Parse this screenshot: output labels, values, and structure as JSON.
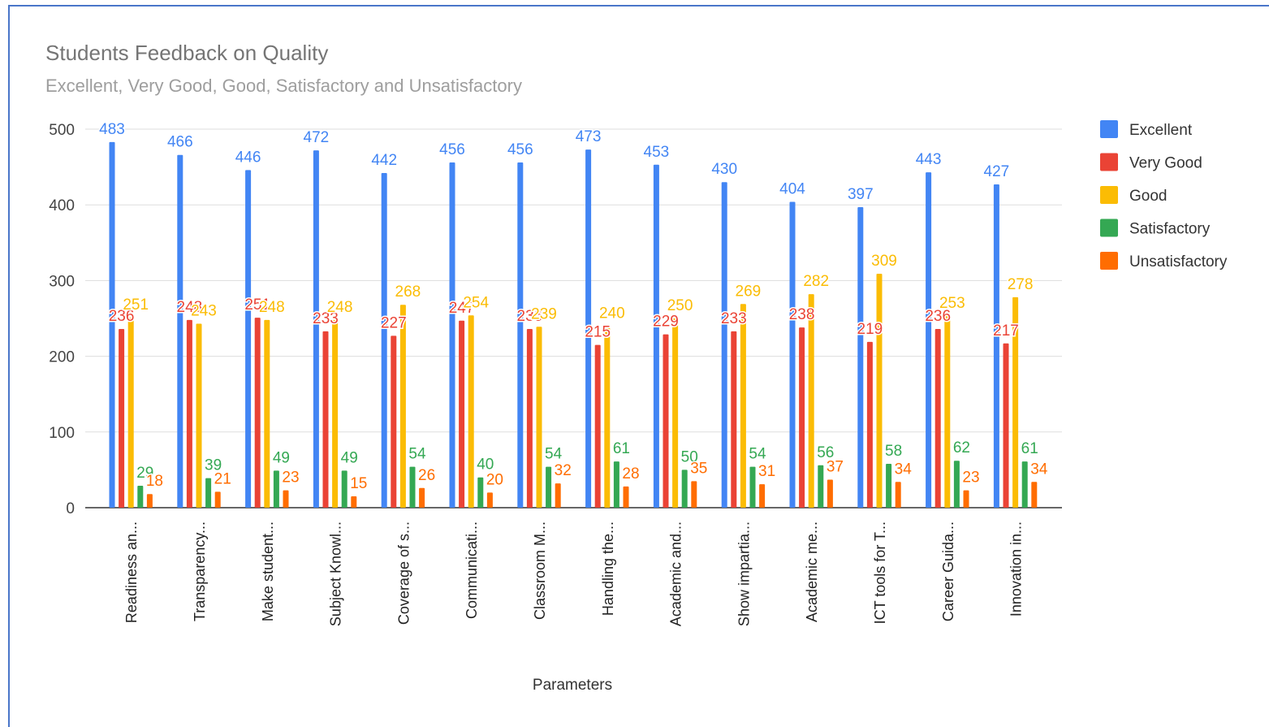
{
  "chart_data": {
    "type": "bar",
    "title": "Students Feedback on Quality",
    "subtitle": "Excellent, Very Good, Good, Satisfactory and Unsatisfactory",
    "xlabel": "Parameters",
    "ylabel": "",
    "ylim": [
      0,
      500
    ],
    "yticks": [
      0,
      100,
      200,
      300,
      400,
      500
    ],
    "grid": true,
    "legend_position": "right",
    "categories": [
      "Readiness an...",
      "Transparency...",
      "Make student...",
      "Subject Knowl...",
      "Coverage of s...",
      "Communicati...",
      "Classroom M...",
      "Handling the...",
      "Academic and...",
      "Show impartia...",
      "Academic me...",
      "ICT tools for T...",
      "Career Guida...",
      "Innovation in..."
    ],
    "series": [
      {
        "name": "Excellent",
        "color": "#4285f4",
        "values": [
          483,
          466,
          446,
          472,
          442,
          456,
          456,
          473,
          453,
          430,
          404,
          397,
          443,
          427
        ]
      },
      {
        "name": "Very Good",
        "color": "#ea4335",
        "values": [
          236,
          248,
          251,
          233,
          227,
          247,
          236,
          215,
          229,
          233,
          238,
          219,
          236,
          217
        ]
      },
      {
        "name": "Good",
        "color": "#fbbc04",
        "values": [
          251,
          243,
          248,
          248,
          268,
          254,
          239,
          240,
          250,
          269,
          282,
          309,
          253,
          278
        ]
      },
      {
        "name": "Satisfactory",
        "color": "#34a853",
        "values": [
          29,
          39,
          49,
          49,
          54,
          40,
          54,
          61,
          50,
          54,
          56,
          58,
          62,
          61
        ]
      },
      {
        "name": "Unsatisfactory",
        "color": "#ff6d01",
        "values": [
          18,
          21,
          23,
          15,
          26,
          20,
          32,
          28,
          35,
          31,
          37,
          34,
          23,
          34
        ]
      }
    ]
  }
}
